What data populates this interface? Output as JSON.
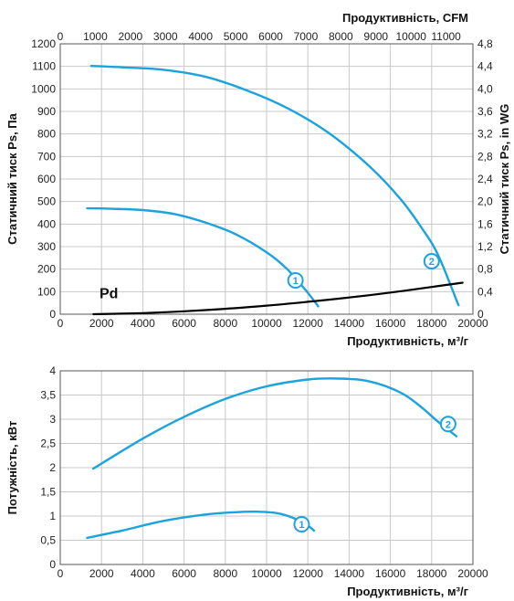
{
  "colors": {
    "curve": "#1aa3dc",
    "pd": "#000000",
    "grid": "#c8c8c8"
  },
  "chart_data": [
    {
      "type": "line",
      "xlabel": "Продуктивність, м³/г",
      "ylabel": "Статичний тиск Ps, Па",
      "x2label": "Продуктивність, CFM",
      "y2label": "Статичний тиск Ps, in WG",
      "xlim": [
        0,
        20000
      ],
      "ylim": [
        0,
        1200
      ],
      "x2lim": [
        0,
        11765
      ],
      "y2lim": [
        0,
        4.8
      ],
      "x_ticks": [
        "0",
        "2000",
        "4000",
        "6000",
        "8000",
        "10000",
        "12000",
        "14000",
        "16000",
        "18000",
        "20000"
      ],
      "y_ticks": [
        "0",
        "100",
        "200",
        "300",
        "400",
        "500",
        "600",
        "700",
        "800",
        "900",
        "1000",
        "1100",
        "1200"
      ],
      "x2_ticks": [
        "0",
        "1000",
        "2000",
        "3000",
        "4000",
        "5000",
        "6000",
        "7000",
        "8000",
        "9000",
        "10000",
        "11000"
      ],
      "y2_ticks": [
        "0",
        "0,4",
        "0,8",
        "1,2",
        "1,6",
        "2,0",
        "2,4",
        "2,8",
        "3,2",
        "3,6",
        "4,0",
        "4,4",
        "4,8"
      ],
      "grid": true,
      "series": [
        {
          "name": "1",
          "color": "#1aa3dc",
          "x": [
            1300,
            2500,
            4000,
            5500,
            7000,
            8500,
            10000,
            11000,
            12000,
            12500
          ],
          "y": [
            470,
            468,
            462,
            445,
            408,
            355,
            275,
            200,
            95,
            35
          ]
        },
        {
          "name": "2",
          "color": "#1aa3dc",
          "x": [
            1500,
            3000,
            5000,
            7000,
            9000,
            11000,
            13000,
            15000,
            16500,
            17500,
            18300,
            19300
          ],
          "y": [
            1102,
            1096,
            1085,
            1055,
            995,
            915,
            805,
            655,
            510,
            385,
            265,
            40
          ]
        },
        {
          "name": "Pd",
          "color": "#000000",
          "x": [
            1600,
            4000,
            6000,
            8000,
            10000,
            12000,
            14000,
            16000,
            18000,
            19500
          ],
          "y": [
            0,
            5,
            13,
            24,
            38,
            55,
            74,
            96,
            121,
            140
          ]
        }
      ],
      "annotations": [
        "Pd",
        "1",
        "2"
      ]
    },
    {
      "type": "line",
      "xlabel": "Продуктивність, м³/г",
      "ylabel": "Потужність, кВт",
      "xlim": [
        0,
        20000
      ],
      "ylim": [
        0,
        4
      ],
      "x_ticks": [
        "0",
        "2000",
        "4000",
        "6000",
        "8000",
        "10000",
        "12000",
        "14000",
        "16000",
        "18000",
        "20000"
      ],
      "y_ticks": [
        "0",
        "0,5",
        "1",
        "1,5",
        "2",
        "2,5",
        "3",
        "3,5",
        "4"
      ],
      "grid": true,
      "series": [
        {
          "name": "1",
          "color": "#1aa3dc",
          "x": [
            1300,
            3000,
            5000,
            7000,
            8500,
            9500,
            10500,
            11300,
            12000,
            12300
          ],
          "y": [
            0.55,
            0.7,
            0.9,
            1.03,
            1.08,
            1.09,
            1.06,
            0.96,
            0.8,
            0.7
          ]
        },
        {
          "name": "2",
          "color": "#1aa3dc",
          "x": [
            1600,
            4000,
            6000,
            8000,
            10000,
            12000,
            13500,
            15000,
            16500,
            17500,
            18300,
            19200
          ],
          "y": [
            1.98,
            2.6,
            3.05,
            3.42,
            3.68,
            3.82,
            3.84,
            3.78,
            3.55,
            3.25,
            2.95,
            2.65
          ]
        }
      ],
      "annotations": [
        "1",
        "2"
      ]
    }
  ]
}
